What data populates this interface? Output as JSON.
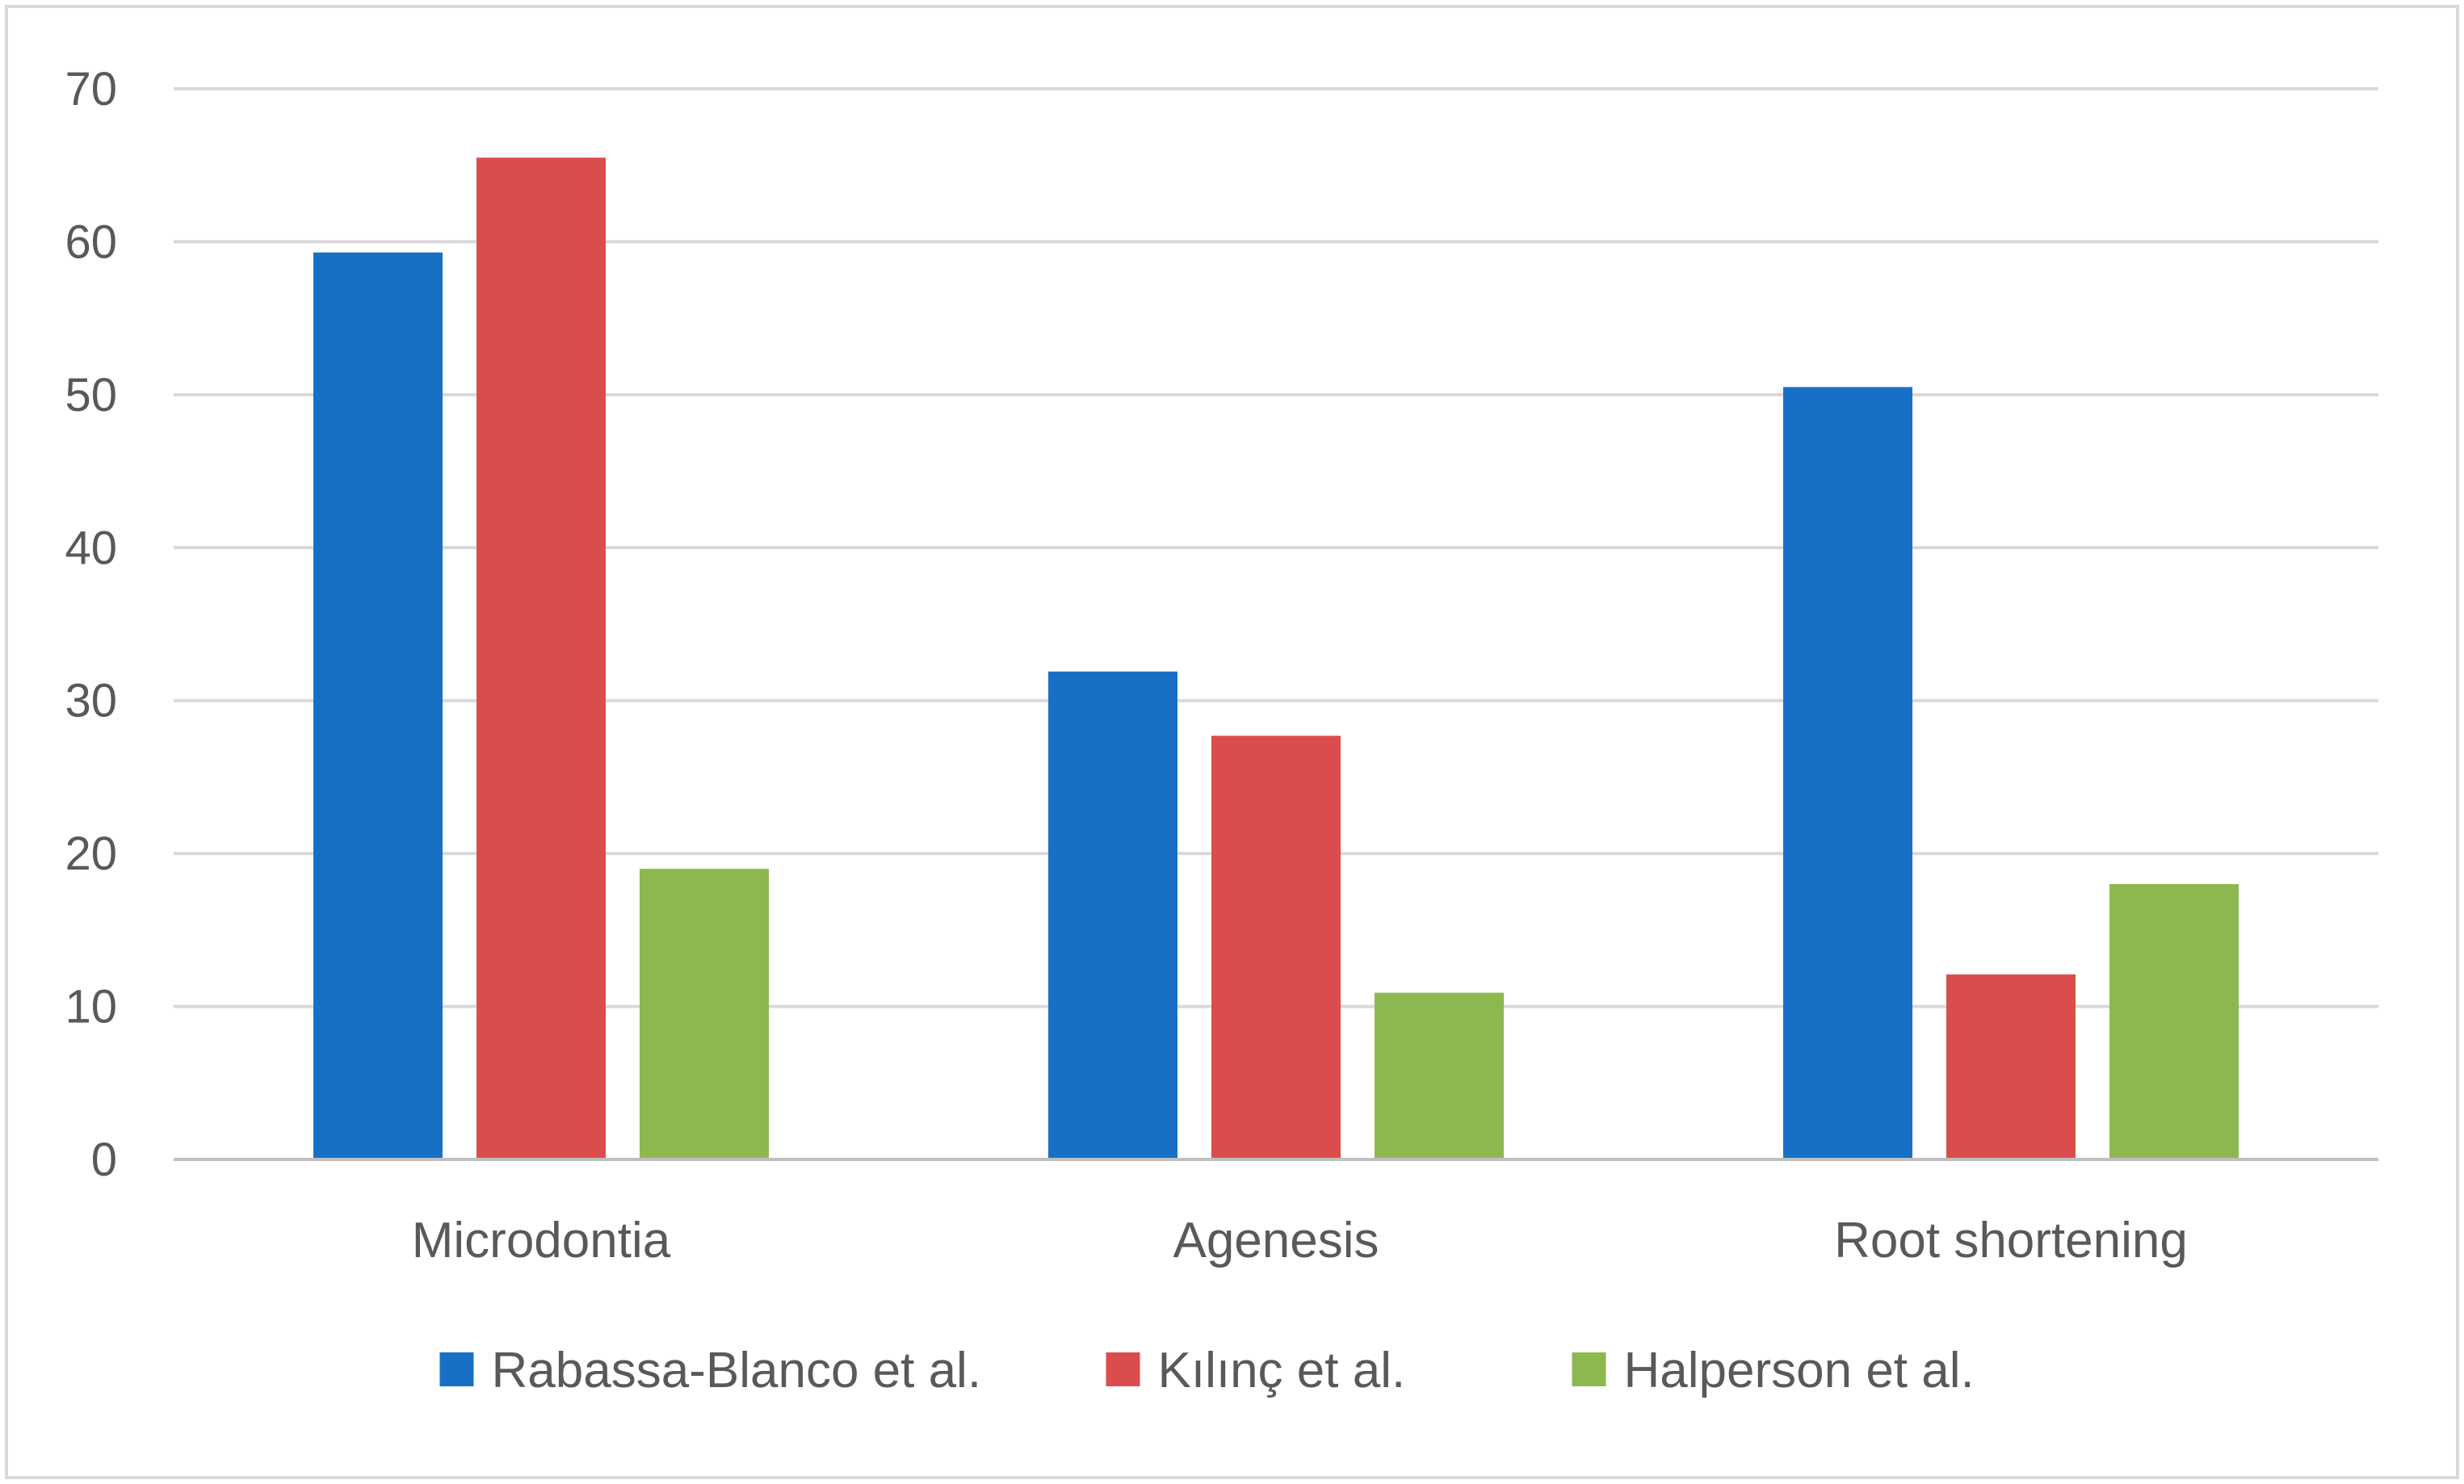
{
  "chart_data": {
    "type": "bar",
    "title": "",
    "xlabel": "",
    "ylabel": "",
    "categories": [
      "Microdontia",
      "Agenesis",
      "Root shortening"
    ],
    "series": [
      {
        "name": "Rabassa-Blanco et al.",
        "values": [
          59.3,
          31.9,
          50.5
        ],
        "color": "#1870C6"
      },
      {
        "name": "Kılınç et al.",
        "values": [
          65.5,
          27.7,
          12.1
        ],
        "color": "#DB4D4C"
      },
      {
        "name": "Halperson et al.",
        "values": [
          19.0,
          10.9,
          18.0
        ],
        "color": "#8DB84F"
      }
    ],
    "ylim": [
      0,
      70
    ],
    "yticks": [
      "0",
      "10",
      "20",
      "30",
      "40",
      "50",
      "60",
      "70"
    ],
    "grid": true,
    "legend_position": "bottom"
  }
}
